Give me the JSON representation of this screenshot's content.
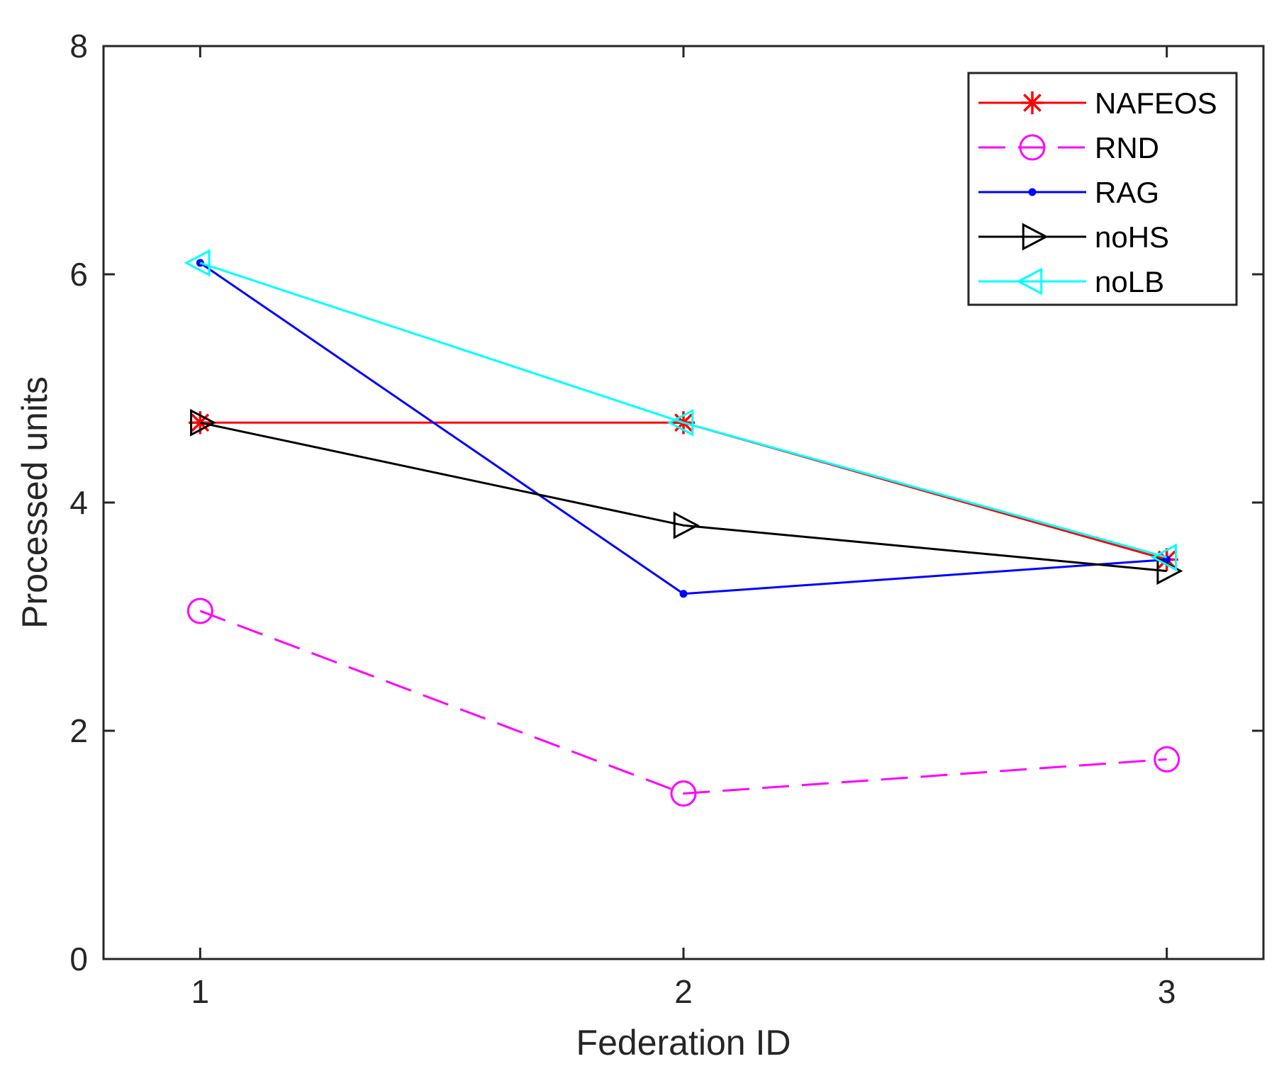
{
  "chart_data": {
    "type": "line",
    "title": "",
    "xlabel": "Federation ID",
    "ylabel": "Processed units",
    "x": [
      1,
      2,
      3
    ],
    "xticks": [
      "1",
      "2",
      "3"
    ],
    "xlim": [
      0.8,
      3.2
    ],
    "ylim": [
      0,
      8
    ],
    "yticks": [
      "0",
      "2",
      "4",
      "6",
      "8"
    ],
    "grid": false,
    "legend_position": "top-right",
    "series": [
      {
        "name": "NAFEOS",
        "values": [
          4.7,
          4.7,
          3.5
        ],
        "color": "#ff0000",
        "marker": "asterisk",
        "line": "solid"
      },
      {
        "name": "RND",
        "values": [
          3.05,
          1.45,
          1.75
        ],
        "color": "#ff00ff",
        "marker": "circle",
        "line": "dashed"
      },
      {
        "name": "RAG",
        "values": [
          6.1,
          3.2,
          3.5
        ],
        "color": "#0000ff",
        "marker": "dot",
        "line": "solid"
      },
      {
        "name": "noHS",
        "values": [
          4.7,
          3.8,
          3.4
        ],
        "color": "#000000",
        "marker": "triangle-right",
        "line": "solid"
      },
      {
        "name": "noLB",
        "values": [
          6.1,
          4.7,
          3.52
        ],
        "color": "#00ffff",
        "marker": "triangle-left",
        "line": "solid"
      }
    ]
  }
}
